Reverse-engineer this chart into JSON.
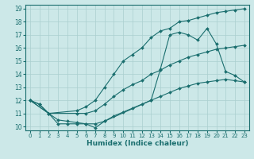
{
  "xlabel": "Humidex (Indice chaleur)",
  "xlim": [
    -0.5,
    23.5
  ],
  "ylim": [
    9.7,
    19.3
  ],
  "yticks": [
    10,
    11,
    12,
    13,
    14,
    15,
    16,
    17,
    18,
    19
  ],
  "xticks": [
    0,
    1,
    2,
    3,
    4,
    5,
    6,
    7,
    8,
    9,
    10,
    11,
    12,
    13,
    14,
    15,
    16,
    17,
    18,
    19,
    20,
    21,
    22,
    23
  ],
  "bg_color": "#cce8e8",
  "grid_color": "#aacfcf",
  "line_color": "#1a6e6e",
  "series": [
    {
      "x": [
        0,
        1,
        2,
        3,
        4,
        5,
        6,
        7,
        8,
        13,
        14,
        15,
        16,
        17,
        18,
        19,
        20,
        21,
        22,
        23
      ],
      "y": [
        12.0,
        11.7,
        11.0,
        10.2,
        10.2,
        10.2,
        10.2,
        9.9,
        10.4,
        12.0,
        14.4,
        17.0,
        17.2,
        17.0,
        16.6,
        17.5,
        16.3,
        14.2,
        13.9,
        13.4
      ]
    },
    {
      "x": [
        0,
        2,
        5,
        6,
        7,
        8,
        9,
        10,
        11,
        12,
        13,
        14,
        15,
        16,
        17,
        18,
        19,
        20,
        21,
        22,
        23
      ],
      "y": [
        12.0,
        11.0,
        11.2,
        11.5,
        12.0,
        13.0,
        14.0,
        15.0,
        15.5,
        16.0,
        16.8,
        17.3,
        17.5,
        18.0,
        18.1,
        18.3,
        18.5,
        18.7,
        18.8,
        18.9,
        19.0
      ]
    },
    {
      "x": [
        0,
        2,
        5,
        6,
        7,
        8,
        9,
        10,
        11,
        12,
        13,
        14,
        15,
        16,
        17,
        18,
        19,
        20,
        21,
        22,
        23
      ],
      "y": [
        12.0,
        11.0,
        11.0,
        11.0,
        11.2,
        11.7,
        12.3,
        12.8,
        13.2,
        13.5,
        14.0,
        14.3,
        14.7,
        15.0,
        15.3,
        15.5,
        15.7,
        15.9,
        16.0,
        16.1,
        16.2
      ]
    },
    {
      "x": [
        0,
        1,
        2,
        3,
        4,
        5,
        6,
        7,
        8,
        9,
        10,
        11,
        12,
        13,
        14,
        15,
        16,
        17,
        18,
        19,
        20,
        21,
        22,
        23
      ],
      "y": [
        12.0,
        11.7,
        11.0,
        10.5,
        10.4,
        10.3,
        10.2,
        10.2,
        10.4,
        10.8,
        11.1,
        11.4,
        11.7,
        12.0,
        12.3,
        12.6,
        12.9,
        13.1,
        13.3,
        13.4,
        13.5,
        13.6,
        13.5,
        13.4
      ]
    }
  ]
}
